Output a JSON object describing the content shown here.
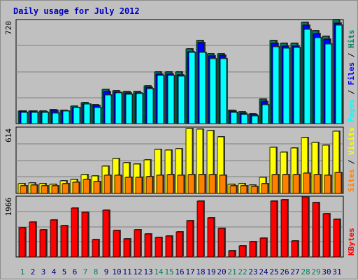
{
  "title": "Daily usage for July 2012",
  "colors": {
    "hits": "#00805c",
    "files": "#0000ff",
    "pages": "#00ffff",
    "visits": "#ffff00",
    "sites": "#ff8000",
    "kbytes": "#ff0000",
    "weekend_day": "#00805c",
    "weekday": "#000080",
    "title": "#0000c0"
  },
  "chart_data": [
    {
      "type": "bar",
      "panel": "hits-files-pages",
      "y_max_label": "720",
      "ylim": [
        0,
        720
      ],
      "legend": [
        {
          "name": "Pages",
          "color": "#00ffff"
        },
        {
          "name": "Files",
          "color": "#0000ff"
        },
        {
          "name": "Hits",
          "color": "#00805c"
        }
      ],
      "legend_separator": " / ",
      "categories": [
        "1",
        "2",
        "3",
        "4",
        "5",
        "6",
        "7",
        "8",
        "9",
        "10",
        "11",
        "12",
        "13",
        "14",
        "15",
        "16",
        "17",
        "18",
        "19",
        "20",
        "21",
        "22",
        "23",
        "24",
        "25",
        "26",
        "27",
        "28",
        "29",
        "30",
        "31"
      ],
      "series": [
        {
          "name": "Hits",
          "values": [
            90,
            90,
            86,
            97,
            95,
            122,
            148,
            134,
            240,
            232,
            226,
            227,
            265,
            362,
            364,
            360,
            522,
            585,
            490,
            490,
            94,
            82,
            69,
            173,
            585,
            563,
            562,
            712,
            650,
            612,
            728
          ]
        },
        {
          "name": "Files",
          "values": [
            86,
            86,
            81,
            91,
            89,
            115,
            138,
            128,
            225,
            219,
            215,
            215,
            253,
            347,
            350,
            345,
            505,
            570,
            476,
            478,
            86,
            74,
            63,
            158,
            565,
            543,
            545,
            690,
            630,
            595,
            705
          ]
        },
        {
          "name": "Pages",
          "values": [
            80,
            80,
            76,
            73,
            87,
            115,
            135,
            115,
            200,
            215,
            208,
            210,
            245,
            340,
            340,
            335,
            500,
            500,
            455,
            455,
            80,
            66,
            55,
            130,
            540,
            530,
            535,
            660,
            600,
            560,
            690
          ]
        }
      ]
    },
    {
      "type": "bar",
      "panel": "visits-sites",
      "y_max_label": "614",
      "ylim": [
        0,
        614
      ],
      "legend": [
        {
          "name": "Sites",
          "color": "#ff8000"
        },
        {
          "name": "Visits",
          "color": "#ffff00"
        }
      ],
      "legend_separator": " / ",
      "categories": [
        "1",
        "2",
        "3",
        "4",
        "5",
        "6",
        "7",
        "8",
        "9",
        "10",
        "11",
        "12",
        "13",
        "14",
        "15",
        "16",
        "17",
        "18",
        "19",
        "20",
        "21",
        "22",
        "23",
        "24",
        "25",
        "26",
        "27",
        "28",
        "29",
        "30",
        "31"
      ],
      "series": [
        {
          "name": "Visits",
          "values": [
            90,
            100,
            95,
            88,
            118,
            135,
            175,
            165,
            260,
            330,
            290,
            280,
            320,
            415,
            410,
            420,
            612,
            610,
            595,
            535,
            88,
            90,
            80,
            150,
            435,
            390,
            430,
            530,
            485,
            455,
            590
          ]
        },
        {
          "name": "Sites",
          "values": [
            75,
            80,
            75,
            70,
            92,
            105,
            135,
            115,
            170,
            170,
            150,
            150,
            160,
            170,
            175,
            172,
            175,
            180,
            175,
            172,
            72,
            72,
            65,
            95,
            180,
            180,
            180,
            190,
            175,
            170,
            195
          ]
        }
      ]
    },
    {
      "type": "bar",
      "panel": "kbytes",
      "y_max_label": "1966",
      "ylim": [
        0,
        1966
      ],
      "legend": [
        {
          "name": "KBytes",
          "color": "#ff0000"
        }
      ],
      "categories": [
        "1",
        "2",
        "3",
        "4",
        "5",
        "6",
        "7",
        "8",
        "9",
        "10",
        "11",
        "12",
        "13",
        "14",
        "15",
        "16",
        "17",
        "18",
        "19",
        "20",
        "21",
        "22",
        "23",
        "24",
        "25",
        "26",
        "27",
        "28",
        "29",
        "30",
        "31"
      ],
      "series": [
        {
          "name": "KBytes",
          "values": [
            980,
            1160,
            900,
            1220,
            1040,
            1620,
            1470,
            580,
            1560,
            870,
            610,
            910,
            770,
            640,
            690,
            840,
            1210,
            1850,
            1300,
            950,
            200,
            380,
            500,
            620,
            1860,
            1900,
            540,
            2000,
            1800,
            1440,
            1250
          ]
        }
      ]
    }
  ]
}
